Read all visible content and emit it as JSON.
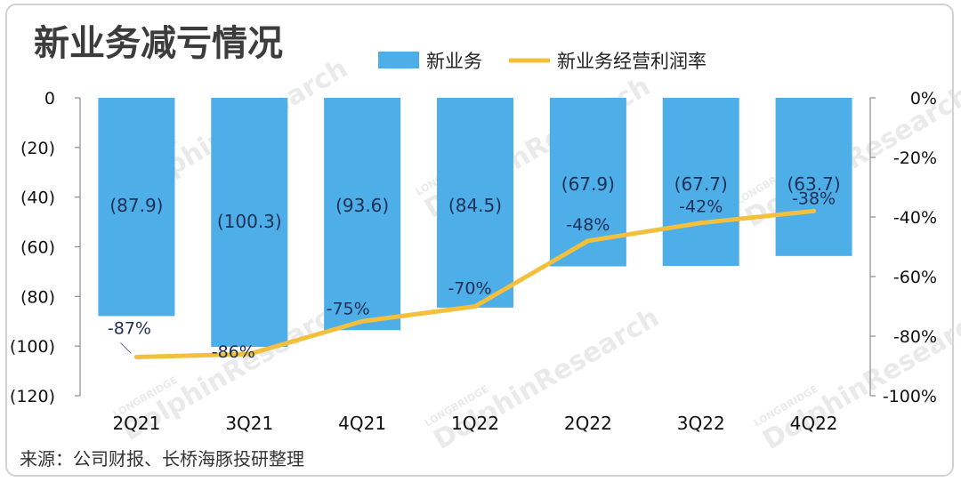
{
  "title": "新业务减亏情况",
  "source": "来源：公司财报、长桥海豚投研整理",
  "watermark": {
    "brand": "LONGBRIDGE",
    "name": "DolphinResearch"
  },
  "colors": {
    "bar": "#4daee8",
    "line": "#f2c03c",
    "title": "#3c3c3c"
  },
  "chart_data": {
    "type": "bar",
    "categories": [
      "2Q21",
      "3Q21",
      "4Q21",
      "1Q22",
      "2Q22",
      "3Q22",
      "4Q22"
    ],
    "series": [
      {
        "name": "新业务",
        "type": "bar",
        "axis": "left",
        "values": [
          -87.9,
          -100.3,
          -93.6,
          -84.5,
          -67.9,
          -67.7,
          -63.7
        ],
        "labels": [
          "(87.9)",
          "(100.3)",
          "(93.6)",
          "(84.5)",
          "(67.9)",
          "(67.7)",
          "(63.7)"
        ]
      },
      {
        "name": "新业务经营利润率",
        "type": "line",
        "axis": "right",
        "values": [
          -87,
          -86,
          -75,
          -70,
          -48,
          -42,
          -38
        ],
        "labels": [
          "-87%",
          "-86%",
          "-75%",
          "-70%",
          "-48%",
          "-42%",
          "-38%"
        ]
      }
    ],
    "left_axis": {
      "ylim": [
        -120,
        0
      ],
      "ticks": [
        0,
        -20,
        -40,
        -60,
        -80,
        -100,
        -120
      ],
      "tick_labels": [
        "0",
        "(20)",
        "(40)",
        "(60)",
        "(80)",
        "(100)",
        "(120)"
      ]
    },
    "right_axis": {
      "ylim": [
        -100,
        0
      ],
      "ticks": [
        0,
        -20,
        -40,
        -60,
        -80,
        -100
      ],
      "tick_labels": [
        "0%",
        "-20%",
        "-40%",
        "-60%",
        "-80%",
        "-100%"
      ]
    },
    "legend_position": "top-right",
    "grid": false
  }
}
